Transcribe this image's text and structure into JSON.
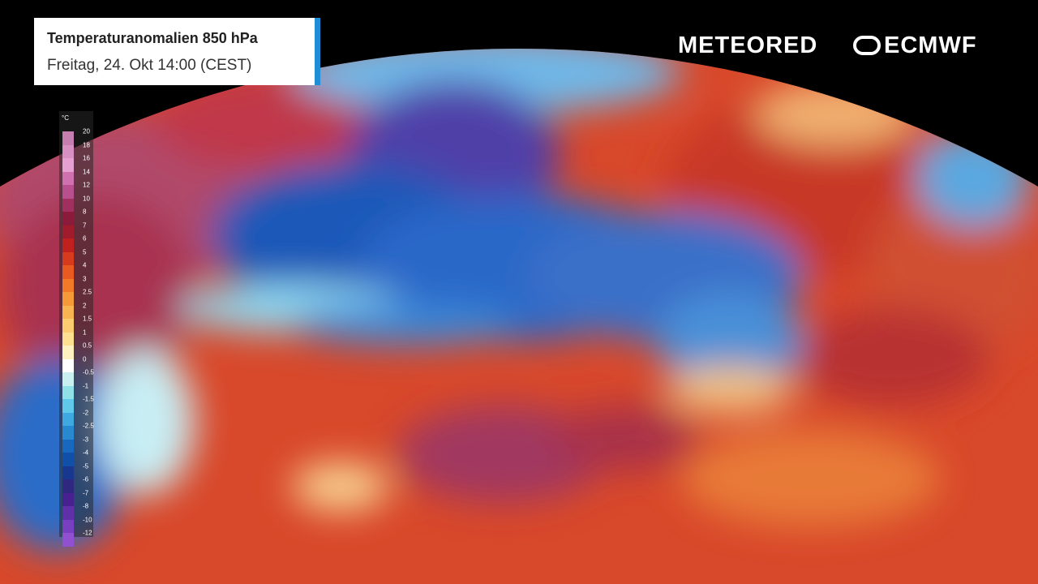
{
  "header": {
    "title": "Temperaturanomalien 850 hPa",
    "subtitle": "Freitag, 24. Okt 14:00 (CEST)"
  },
  "logos": [
    "METEORED",
    "ECMWF"
  ],
  "legend": {
    "unit": "°C",
    "labels": [
      20,
      18,
      16,
      14,
      12,
      10,
      8,
      7,
      6,
      5,
      4,
      3,
      2.5,
      2,
      1.5,
      1,
      0.5,
      0,
      -0.5,
      -1,
      -1.5,
      -2,
      -2.5,
      -3,
      -4,
      -5,
      -6,
      -7,
      -8,
      -10,
      -12
    ],
    "colors": [
      "#c47fb0",
      "#d890c4",
      "#e6a0d2",
      "#d070b0",
      "#b8508f",
      "#a03060",
      "#8c1a3a",
      "#a01c2c",
      "#c0201e",
      "#d83a1e",
      "#e85a20",
      "#f07a28",
      "#f49a38",
      "#f8b450",
      "#fbcc70",
      "#fde090",
      "#fff0c0",
      "#ffffff",
      "#c8f0f0",
      "#90e0e8",
      "#60c8e8",
      "#40a8e0",
      "#2888d0",
      "#1868c0",
      "#1050a8",
      "#183890",
      "#302880",
      "#482090",
      "#6030a8",
      "#7840c0",
      "#9050d0"
    ]
  }
}
